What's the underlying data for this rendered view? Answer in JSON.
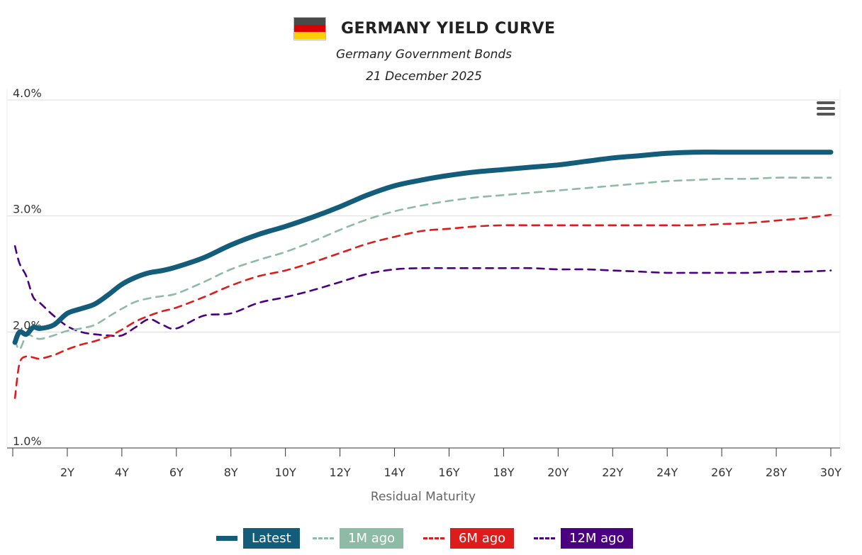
{
  "header": {
    "title": "GERMANY YIELD CURVE",
    "subtitle": "Germany Government Bonds",
    "date": "21 December 2025",
    "flag_colors": [
      "#4a4a4a",
      "#dd0000",
      "#ffce00"
    ]
  },
  "menu_icon": "hamburger-menu-icon",
  "legend": [
    {
      "label": "Latest",
      "color": "#135c7a",
      "style": "solid"
    },
    {
      "label": "1M ago",
      "color": "#8dbba5",
      "style": "dashed"
    },
    {
      "label": "6M ago",
      "color": "#dd1c1c",
      "style": "dashed"
    },
    {
      "label": "12M ago",
      "color": "#4b0082",
      "style": "dashed"
    }
  ],
  "chart_data": {
    "type": "line",
    "title": "GERMANY YIELD CURVE",
    "subtitle": "Germany Government Bonds",
    "xlabel": "Residual Maturity",
    "ylabel": "",
    "xlim": [
      0,
      30
    ],
    "ylim": [
      1.0,
      4.0
    ],
    "x_ticks": [
      2,
      4,
      6,
      8,
      10,
      12,
      14,
      16,
      18,
      20,
      22,
      24,
      26,
      28,
      30
    ],
    "x_tick_labels": [
      "2Y",
      "4Y",
      "6Y",
      "8Y",
      "10Y",
      "12Y",
      "14Y",
      "16Y",
      "18Y",
      "20Y",
      "22Y",
      "24Y",
      "26Y",
      "28Y",
      "30Y"
    ],
    "y_ticks": [
      1.0,
      2.0,
      3.0,
      4.0
    ],
    "y_tick_labels": [
      "1.0%",
      "2.0%",
      "3.0%",
      "4.0%"
    ],
    "grid": true,
    "legend_position": "bottom-center",
    "series": [
      {
        "name": "Latest",
        "color": "#135c7a",
        "x": [
          0.08,
          0.25,
          0.5,
          0.75,
          1,
          1.5,
          2,
          2.5,
          3,
          3.5,
          4,
          4.5,
          5,
          5.5,
          6,
          7,
          8,
          9,
          10,
          11,
          12,
          13,
          14,
          15,
          16,
          17,
          18,
          19,
          20,
          21,
          22,
          23,
          24,
          25,
          26,
          27,
          28,
          29,
          30
        ],
        "y": [
          1.91,
          2.0,
          1.98,
          2.04,
          2.03,
          2.06,
          2.16,
          2.2,
          2.24,
          2.32,
          2.41,
          2.47,
          2.51,
          2.53,
          2.56,
          2.64,
          2.75,
          2.84,
          2.91,
          2.99,
          3.08,
          3.18,
          3.26,
          3.31,
          3.35,
          3.38,
          3.4,
          3.42,
          3.44,
          3.47,
          3.5,
          3.52,
          3.54,
          3.55,
          3.55,
          3.55,
          3.55,
          3.55,
          3.55
        ]
      },
      {
        "name": "1M ago",
        "color": "#8dbba5",
        "x": [
          0.08,
          0.25,
          0.5,
          0.75,
          1,
          1.5,
          2,
          2.5,
          3,
          3.5,
          4,
          4.5,
          5,
          5.5,
          6,
          7,
          8,
          9,
          10,
          11,
          12,
          13,
          14,
          15,
          16,
          17,
          18,
          19,
          20,
          21,
          22,
          23,
          24,
          25,
          26,
          27,
          28,
          29,
          30
        ],
        "y": [
          1.93,
          1.85,
          1.97,
          1.96,
          1.94,
          1.97,
          2.01,
          2.03,
          2.06,
          2.13,
          2.2,
          2.26,
          2.29,
          2.31,
          2.33,
          2.43,
          2.54,
          2.62,
          2.69,
          2.78,
          2.88,
          2.97,
          3.04,
          3.09,
          3.13,
          3.16,
          3.18,
          3.2,
          3.22,
          3.24,
          3.26,
          3.28,
          3.3,
          3.31,
          3.32,
          3.32,
          3.33,
          3.33,
          3.33
        ]
      },
      {
        "name": "6M ago",
        "color": "#dd1c1c",
        "x": [
          0.08,
          0.25,
          0.5,
          0.75,
          1,
          1.5,
          2,
          2.5,
          3,
          3.5,
          4,
          4.5,
          5,
          5.5,
          6,
          7,
          8,
          9,
          10,
          11,
          12,
          13,
          14,
          15,
          16,
          17,
          18,
          19,
          20,
          21,
          22,
          23,
          24,
          25,
          26,
          27,
          28,
          29,
          30
        ],
        "y": [
          1.43,
          1.73,
          1.79,
          1.78,
          1.77,
          1.8,
          1.85,
          1.89,
          1.92,
          1.96,
          2.02,
          2.09,
          2.14,
          2.18,
          2.21,
          2.3,
          2.4,
          2.48,
          2.53,
          2.6,
          2.68,
          2.76,
          2.82,
          2.87,
          2.89,
          2.91,
          2.92,
          2.92,
          2.92,
          2.92,
          2.92,
          2.92,
          2.92,
          2.92,
          2.93,
          2.94,
          2.96,
          2.98,
          3.01
        ]
      },
      {
        "name": "12M ago",
        "color": "#4b0082",
        "x": [
          0.08,
          0.25,
          0.5,
          0.75,
          1,
          1.5,
          2,
          2.5,
          3,
          3.5,
          4,
          4.5,
          5,
          5.5,
          6,
          7,
          8,
          9,
          10,
          11,
          12,
          13,
          14,
          15,
          16,
          17,
          18,
          19,
          20,
          21,
          22,
          23,
          24,
          25,
          26,
          27,
          28,
          29,
          30
        ],
        "y": [
          2.74,
          2.59,
          2.48,
          2.3,
          2.25,
          2.14,
          2.05,
          2.0,
          1.98,
          1.97,
          1.97,
          2.04,
          2.11,
          2.06,
          2.03,
          2.14,
          2.16,
          2.25,
          2.3,
          2.36,
          2.43,
          2.5,
          2.54,
          2.55,
          2.55,
          2.55,
          2.55,
          2.55,
          2.54,
          2.54,
          2.53,
          2.52,
          2.51,
          2.51,
          2.51,
          2.51,
          2.52,
          2.52,
          2.53
        ]
      }
    ]
  }
}
